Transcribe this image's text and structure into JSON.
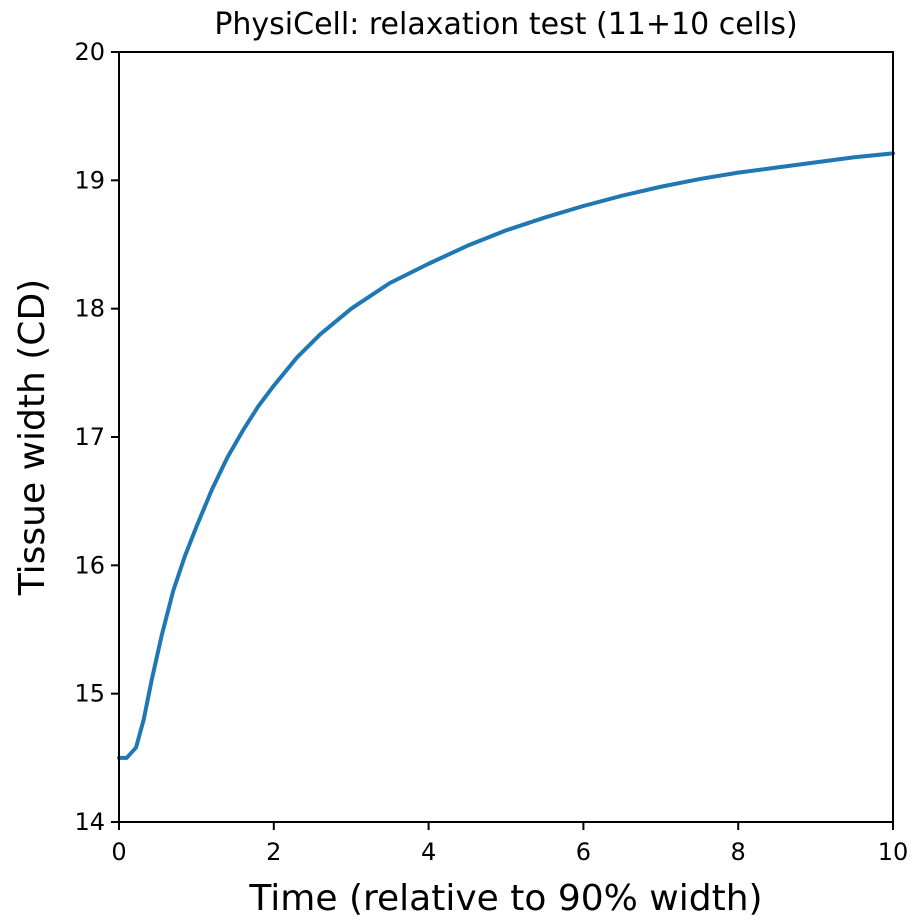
{
  "chart_data": {
    "type": "line",
    "title": "PhysiCell: relaxation test (11+10 cells)",
    "xlabel": "Time (relative to 90% width)",
    "ylabel": "Tissue width (CD)",
    "xlim": [
      0,
      10
    ],
    "ylim": [
      14,
      20
    ],
    "xticks": [
      0,
      2,
      4,
      6,
      8,
      10
    ],
    "yticks": [
      14,
      15,
      16,
      17,
      18,
      19,
      20
    ],
    "grid": false,
    "series": [
      {
        "color": "#1f77b4",
        "x": [
          0,
          0.1,
          0.22,
          0.32,
          0.42,
          0.55,
          0.7,
          0.85,
          1.0,
          1.2,
          1.4,
          1.6,
          1.8,
          2.0,
          2.3,
          2.6,
          3.0,
          3.5,
          4.0,
          4.5,
          5.0,
          5.5,
          6.0,
          6.5,
          7.0,
          7.5,
          8.0,
          8.5,
          9.0,
          9.5,
          10.0
        ],
        "y": [
          14.5,
          14.5,
          14.58,
          14.8,
          15.1,
          15.45,
          15.8,
          16.07,
          16.3,
          16.59,
          16.84,
          17.05,
          17.24,
          17.4,
          17.62,
          17.8,
          18.0,
          18.2,
          18.35,
          18.49,
          18.61,
          18.71,
          18.8,
          18.88,
          18.95,
          19.01,
          19.06,
          19.1,
          19.14,
          19.18,
          19.21
        ]
      }
    ]
  }
}
